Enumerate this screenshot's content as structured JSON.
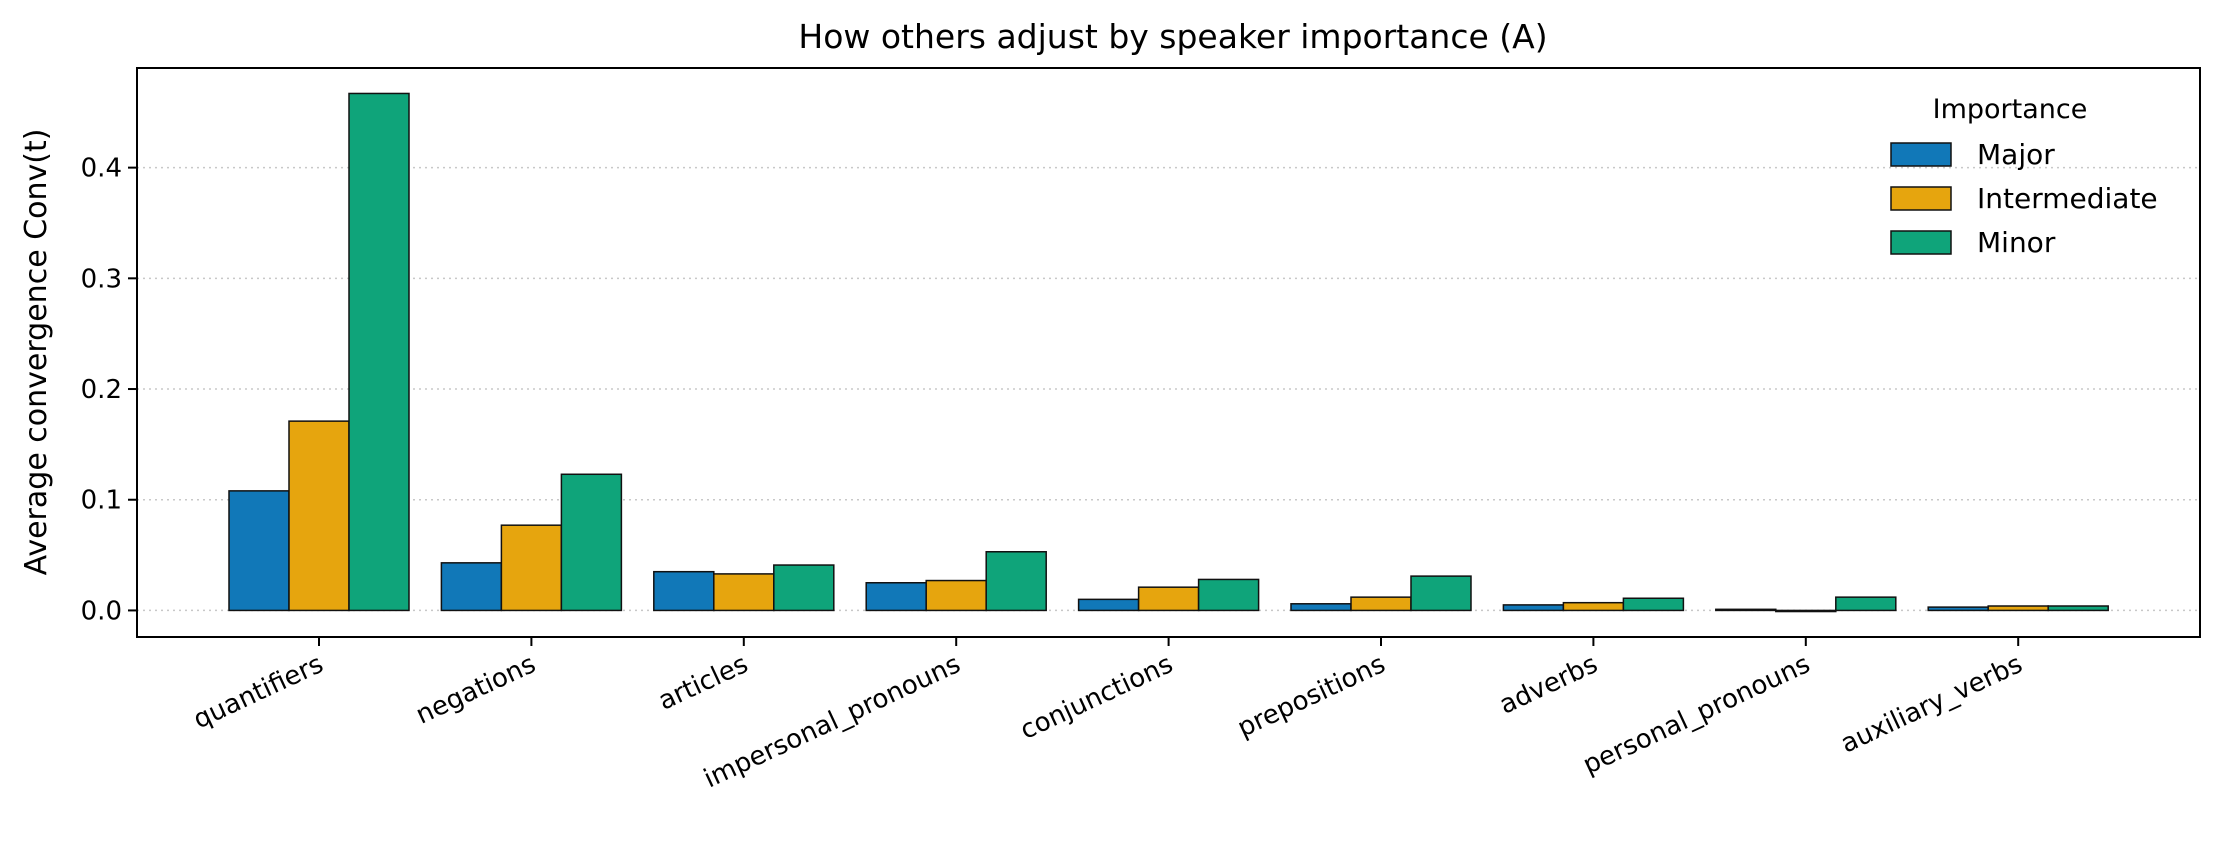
{
  "chart_data": {
    "type": "bar",
    "title": "How others adjust by speaker importance (A)",
    "xlabel": "",
    "ylabel": "Average convergence  Conv(t)",
    "categories": [
      "quantifiers",
      "negations",
      "articles",
      "impersonal_pronouns",
      "conjunctions",
      "prepositions",
      "adverbs",
      "personal_pronouns",
      "auxiliary_verbs"
    ],
    "series": [
      {
        "name": "Major",
        "color": "#1178b8",
        "values": [
          0.108,
          0.043,
          0.035,
          0.025,
          0.01,
          0.006,
          0.005,
          0.001,
          0.003
        ]
      },
      {
        "name": "Intermediate",
        "color": "#e6a50e",
        "values": [
          0.171,
          0.077,
          0.033,
          0.027,
          0.021,
          0.012,
          0.007,
          -0.001,
          0.004
        ]
      },
      {
        "name": "Minor",
        "color": "#0fa47a",
        "values": [
          0.467,
          0.123,
          0.041,
          0.053,
          0.028,
          0.031,
          0.011,
          0.012,
          0.004
        ]
      }
    ],
    "ylim": [
      -0.024,
      0.49
    ],
    "yticks": [
      0.0,
      0.1,
      0.2,
      0.3,
      0.4
    ],
    "ytick_labels": [
      "0.0",
      "0.1",
      "0.2",
      "0.3",
      "0.4"
    ],
    "grid": "horizontal dotted",
    "legend": {
      "title": "Importance",
      "position": "top-right"
    }
  }
}
